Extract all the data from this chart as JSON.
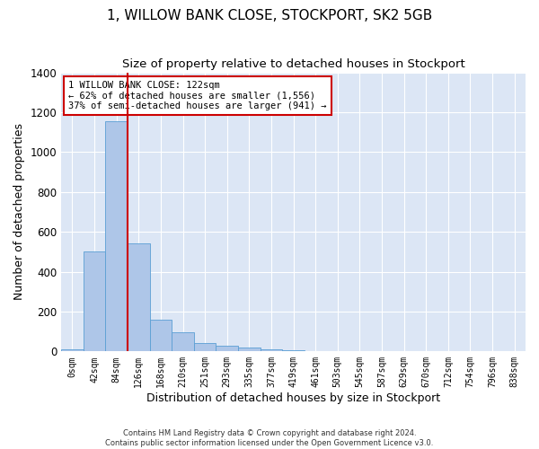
{
  "title": "1, WILLOW BANK CLOSE, STOCKPORT, SK2 5GB",
  "subtitle": "Size of property relative to detached houses in Stockport",
  "xlabel": "Distribution of detached houses by size in Stockport",
  "ylabel": "Number of detached properties",
  "bar_labels": [
    "0sqm",
    "42sqm",
    "84sqm",
    "126sqm",
    "168sqm",
    "210sqm",
    "251sqm",
    "293sqm",
    "335sqm",
    "377sqm",
    "419sqm",
    "461sqm",
    "503sqm",
    "545sqm",
    "587sqm",
    "629sqm",
    "670sqm",
    "712sqm",
    "754sqm",
    "796sqm",
    "838sqm"
  ],
  "bar_values": [
    10,
    500,
    1155,
    540,
    160,
    95,
    40,
    30,
    20,
    10,
    5,
    0,
    0,
    0,
    0,
    0,
    0,
    0,
    0,
    0,
    0
  ],
  "bar_color": "#aec6e8",
  "bar_edge_color": "#5a9fd4",
  "vline_x_index": 2.5,
  "vline_color": "#cc0000",
  "annotation_text": "1 WILLOW BANK CLOSE: 122sqm\n← 62% of detached houses are smaller (1,556)\n37% of semi-detached houses are larger (941) →",
  "annotation_box_color": "#ffffff",
  "annotation_box_edge": "#cc0000",
  "ylim": [
    0,
    1400
  ],
  "yticks": [
    0,
    200,
    400,
    600,
    800,
    1000,
    1200,
    1400
  ],
  "background_color": "#dce6f5",
  "grid_color": "#ffffff",
  "footer": "Contains HM Land Registry data © Crown copyright and database right 2024.\nContains public sector information licensed under the Open Government Licence v3.0.",
  "title_fontsize": 11,
  "subtitle_fontsize": 9.5,
  "xlabel_fontsize": 9,
  "ylabel_fontsize": 9
}
